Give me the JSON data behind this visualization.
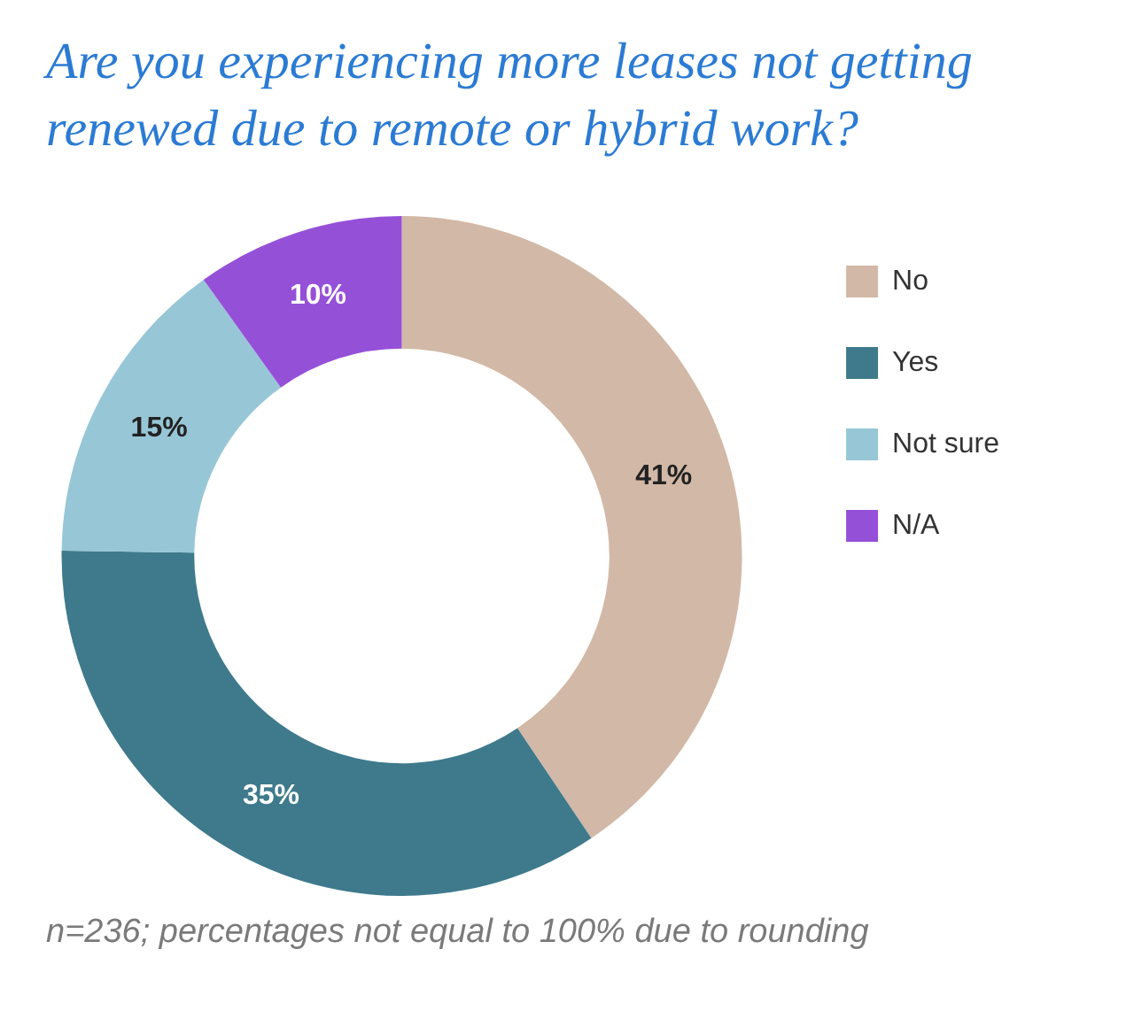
{
  "chart_data": {
    "type": "donut",
    "title": "Are you experiencing more leases not getting renewed due to remote or hybrid work?",
    "categories": [
      "No",
      "Yes",
      "Not sure",
      "N/A"
    ],
    "values": [
      41,
      35,
      15,
      10
    ],
    "value_labels": [
      "41%",
      "35%",
      "15%",
      "10%"
    ],
    "colors": [
      "#d2b8a6",
      "#3e7a8c",
      "#97c7d6",
      "#9550d8"
    ],
    "legend": "right",
    "annotations": [
      "n=236; percentages not equal to 100% due to rounding"
    ]
  }
}
